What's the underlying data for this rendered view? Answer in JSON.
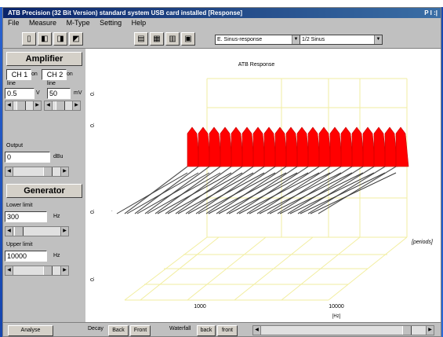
{
  "window": {
    "title": "ATB Precision (32 Bit Version) standard system USB card installed [Response]",
    "controls": "P I :|"
  },
  "menu": [
    "File",
    "Measure",
    "M-Type",
    "Setting",
    "Help"
  ],
  "toolbar": {
    "combo1": "E. Sinus-response",
    "combo2": "1/2 Sinus"
  },
  "amplifier": {
    "title": "Amplifier",
    "ch1": "CH 1",
    "ch2": "CH 2",
    "ch1_unit": "on",
    "ch2_unit": "on",
    "ch1_sub": "line",
    "ch2_sub": "line",
    "left_value": "0.5",
    "left_unit": "V",
    "right_value": "50",
    "right_unit": "mV"
  },
  "output": {
    "label": "Output",
    "value": "0",
    "unit": "dBu"
  },
  "generator": {
    "title": "Generator",
    "lower_label": "Lower limit",
    "lower_value": "300",
    "lower_unit": "Hz",
    "upper_label": "Upper limit",
    "upper_value": "10000",
    "upper_unit": "Hz"
  },
  "plot": {
    "title": "ATB Response",
    "x_tick_1": "1000",
    "x_tick_2": "10000",
    "x_unit": "[Hz]",
    "z_label": "[periods]",
    "y_labels": [
      "0.",
      "0.",
      "0.",
      "0."
    ]
  },
  "status": {
    "analyse": "Analyse",
    "decay": "Decay",
    "back": "Back",
    "front": "Front",
    "waterfall": "Waterfall",
    "wf_back": "back",
    "wf_front": "front"
  },
  "colors": {
    "slice_fill": "#ff0000",
    "grid": "#f2eea0",
    "floor_line": "#555555"
  }
}
